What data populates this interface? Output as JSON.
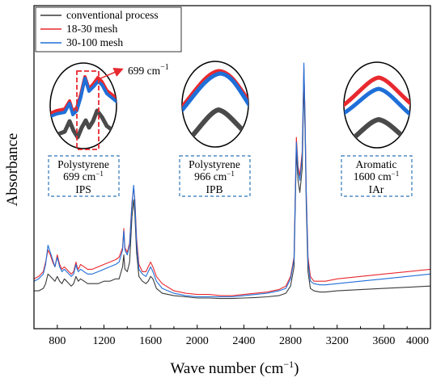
{
  "chart_data": {
    "type": "line",
    "xlabel": "Wave number (cm",
    "xlabel_sup": "−1",
    "xlabel_end": ")",
    "ylabel": "Absorbance",
    "xlim": [
      600,
      4000
    ],
    "ylim": [
      0,
      1
    ],
    "xticks": [
      800,
      1200,
      1600,
      2000,
      2400,
      2800,
      3200,
      3600,
      4000
    ],
    "yticks_shown": false,
    "grid": false,
    "legend_position": "top-left",
    "colors": {
      "conventional": "#3a3a3a",
      "mesh18": "#e8292f",
      "mesh30": "#1f6fd8",
      "box": "#2e75b6"
    },
    "series": [
      {
        "name": "conventional process",
        "color": "#3a3a3a",
        "x": [
          600,
          640,
          680,
          700,
          720,
          740,
          760,
          780,
          800,
          820,
          840,
          860,
          880,
          900,
          920,
          940,
          960,
          970,
          980,
          1000,
          1030,
          1060,
          1100,
          1150,
          1200,
          1250,
          1300,
          1330,
          1360,
          1370,
          1380,
          1400,
          1420,
          1440,
          1455,
          1465,
          1480,
          1500,
          1530,
          1560,
          1580,
          1600,
          1620,
          1650,
          1700,
          1800,
          1900,
          2000,
          2100,
          2200,
          2300,
          2400,
          2500,
          2600,
          2700,
          2760,
          2800,
          2830,
          2850,
          2865,
          2880,
          2900,
          2915,
          2925,
          2935,
          2950,
          2970,
          3000,
          3050,
          3100,
          3200,
          3400,
          3600,
          3800,
          4000
        ],
        "y": [
          0.04,
          0.04,
          0.05,
          0.07,
          0.11,
          0.1,
          0.09,
          0.08,
          0.1,
          0.08,
          0.07,
          0.09,
          0.08,
          0.07,
          0.06,
          0.07,
          0.1,
          0.09,
          0.08,
          0.09,
          0.08,
          0.07,
          0.07,
          0.07,
          0.08,
          0.08,
          0.09,
          0.09,
          0.14,
          0.19,
          0.13,
          0.12,
          0.16,
          0.35,
          0.42,
          0.36,
          0.2,
          0.1,
          0.08,
          0.07,
          0.08,
          0.1,
          0.09,
          0.05,
          0.03,
          0.02,
          0.015,
          0.01,
          0.01,
          0.008,
          0.008,
          0.01,
          0.012,
          0.015,
          0.02,
          0.03,
          0.06,
          0.14,
          0.62,
          0.5,
          0.45,
          0.55,
          0.91,
          0.7,
          0.4,
          0.12,
          0.05,
          0.04,
          0.035,
          0.035,
          0.04,
          0.045,
          0.05,
          0.055,
          0.06
        ]
      },
      {
        "name": "18-30 mesh",
        "color": "#e8292f",
        "x": [
          600,
          640,
          680,
          700,
          720,
          740,
          760,
          780,
          800,
          820,
          840,
          860,
          880,
          900,
          920,
          940,
          960,
          970,
          980,
          1000,
          1030,
          1060,
          1100,
          1150,
          1200,
          1250,
          1300,
          1330,
          1360,
          1370,
          1380,
          1400,
          1420,
          1440,
          1455,
          1465,
          1480,
          1500,
          1530,
          1560,
          1580,
          1600,
          1620,
          1650,
          1700,
          1800,
          1900,
          2000,
          2100,
          2200,
          2300,
          2400,
          2500,
          2600,
          2700,
          2760,
          2800,
          2830,
          2850,
          2865,
          2880,
          2900,
          2915,
          2925,
          2935,
          2950,
          2970,
          3000,
          3050,
          3100,
          3200,
          3400,
          3600,
          3800,
          4000
        ],
        "y": [
          0.09,
          0.1,
          0.12,
          0.16,
          0.21,
          0.19,
          0.16,
          0.14,
          0.19,
          0.15,
          0.13,
          0.14,
          0.13,
          0.12,
          0.11,
          0.12,
          0.16,
          0.14,
          0.13,
          0.15,
          0.14,
          0.13,
          0.13,
          0.14,
          0.15,
          0.16,
          0.17,
          0.18,
          0.22,
          0.3,
          0.22,
          0.2,
          0.24,
          0.41,
          0.47,
          0.42,
          0.26,
          0.15,
          0.12,
          0.12,
          0.14,
          0.16,
          0.14,
          0.1,
          0.07,
          0.04,
          0.03,
          0.025,
          0.025,
          0.02,
          0.02,
          0.025,
          0.03,
          0.035,
          0.045,
          0.06,
          0.1,
          0.18,
          0.68,
          0.56,
          0.52,
          0.62,
          0.97,
          0.76,
          0.46,
          0.18,
          0.1,
          0.08,
          0.08,
          0.08,
          0.09,
          0.1,
          0.11,
          0.12,
          0.13
        ]
      },
      {
        "name": "30-100 mesh",
        "color": "#1f6fd8",
        "x": [
          600,
          640,
          680,
          700,
          720,
          740,
          760,
          780,
          800,
          820,
          840,
          860,
          880,
          900,
          920,
          940,
          960,
          970,
          980,
          1000,
          1030,
          1060,
          1100,
          1150,
          1200,
          1250,
          1300,
          1330,
          1360,
          1370,
          1380,
          1400,
          1420,
          1440,
          1455,
          1465,
          1480,
          1500,
          1530,
          1560,
          1580,
          1600,
          1620,
          1650,
          1700,
          1800,
          1900,
          2000,
          2100,
          2200,
          2300,
          2400,
          2500,
          2600,
          2700,
          2760,
          2800,
          2830,
          2850,
          2865,
          2880,
          2900,
          2915,
          2925,
          2935,
          2950,
          2970,
          3000,
          3050,
          3100,
          3200,
          3400,
          3600,
          3800,
          4000
        ],
        "y": [
          0.08,
          0.09,
          0.11,
          0.15,
          0.23,
          0.2,
          0.17,
          0.14,
          0.18,
          0.14,
          0.12,
          0.13,
          0.12,
          0.11,
          0.1,
          0.11,
          0.15,
          0.13,
          0.12,
          0.13,
          0.12,
          0.11,
          0.11,
          0.12,
          0.13,
          0.14,
          0.15,
          0.16,
          0.21,
          0.29,
          0.21,
          0.19,
          0.23,
          0.4,
          0.48,
          0.41,
          0.24,
          0.13,
          0.11,
          0.1,
          0.12,
          0.14,
          0.12,
          0.08,
          0.05,
          0.03,
          0.02,
          0.015,
          0.015,
          0.015,
          0.015,
          0.02,
          0.025,
          0.03,
          0.04,
          0.05,
          0.09,
          0.17,
          0.66,
          0.54,
          0.5,
          0.6,
          0.99,
          0.74,
          0.44,
          0.16,
          0.08,
          0.07,
          0.065,
          0.065,
          0.07,
          0.08,
          0.09,
          0.1,
          0.11
        ]
      }
    ],
    "annotations": [
      {
        "line1": "Polystyrene",
        "line2": "699 cm",
        "line2_sup": "−1",
        "line3": "IPS"
      },
      {
        "line1": "Polystyrene",
        "line2": "966 cm",
        "line2_sup": "−1",
        "line3": "IPB"
      },
      {
        "line1": "Aromatic",
        "line2": "1600 cm",
        "line2_sup": "−1",
        "line3": "IAr"
      }
    ],
    "callout": {
      "text": "699 cm",
      "sup": "−1"
    }
  }
}
